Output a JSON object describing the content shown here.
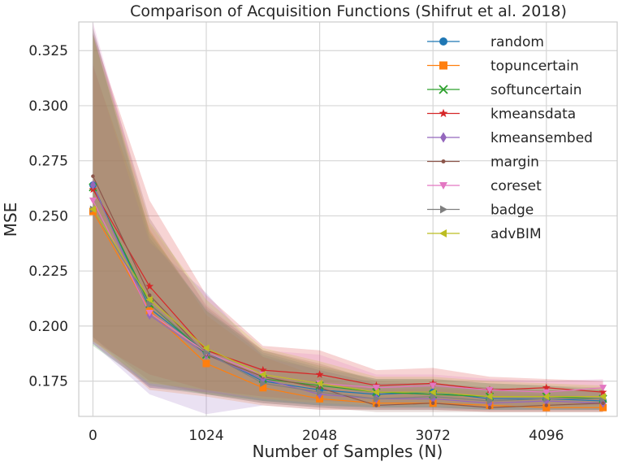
{
  "chart_data": {
    "type": "line",
    "title": "Comparison of Acquisition Functions (Shifrut et al. 2018)",
    "xlabel": "Number of Samples (N)",
    "ylabel": "MSE",
    "xlim": [
      -128,
      4736
    ],
    "ylim": [
      0.159,
      0.338
    ],
    "xticks": [
      0,
      1024,
      2048,
      3072,
      4096
    ],
    "xtick_labels": [
      "0",
      "1024",
      "2048",
      "3072",
      "4096"
    ],
    "yticks": [
      0.175,
      0.2,
      0.225,
      0.25,
      0.275,
      0.3,
      0.325
    ],
    "ytick_labels": [
      "0.175",
      "0.200",
      "0.225",
      "0.250",
      "0.275",
      "0.300",
      "0.325"
    ],
    "grid": true,
    "legend_position": "top-right",
    "x": [
      0,
      512,
      1024,
      1536,
      2048,
      2560,
      3072,
      3584,
      4096,
      4608
    ],
    "series": [
      {
        "name": "random",
        "color": "#1f77b4",
        "marker": "circle",
        "values": [
          0.264,
          0.208,
          0.188,
          0.175,
          0.171,
          0.169,
          0.17,
          0.167,
          0.167,
          0.166
        ],
        "lower": [
          0.195,
          0.172,
          0.17,
          0.166,
          0.164,
          0.163,
          0.163,
          0.162,
          0.162,
          0.162
        ],
        "upper": [
          0.333,
          0.24,
          0.208,
          0.188,
          0.181,
          0.176,
          0.176,
          0.174,
          0.173,
          0.171
        ]
      },
      {
        "name": "topuncertain",
        "color": "#ff7f0e",
        "marker": "square",
        "values": [
          0.252,
          0.207,
          0.183,
          0.172,
          0.167,
          0.165,
          0.165,
          0.164,
          0.163,
          0.163
        ],
        "lower": [
          0.194,
          0.171,
          0.168,
          0.164,
          0.162,
          0.162,
          0.162,
          0.161,
          0.161,
          0.161
        ],
        "upper": [
          0.318,
          0.244,
          0.205,
          0.186,
          0.177,
          0.171,
          0.172,
          0.17,
          0.169,
          0.168
        ]
      },
      {
        "name": "softuncertain",
        "color": "#2ca02c",
        "marker": "x",
        "values": [
          0.263,
          0.21,
          0.187,
          0.176,
          0.173,
          0.17,
          0.169,
          0.168,
          0.168,
          0.167
        ],
        "lower": [
          0.191,
          0.173,
          0.169,
          0.166,
          0.164,
          0.163,
          0.163,
          0.162,
          0.162,
          0.162
        ],
        "upper": [
          0.332,
          0.243,
          0.207,
          0.189,
          0.182,
          0.176,
          0.176,
          0.174,
          0.173,
          0.172
        ]
      },
      {
        "name": "kmeansdata",
        "color": "#d62728",
        "marker": "star",
        "values": [
          0.262,
          0.218,
          0.189,
          0.18,
          0.178,
          0.173,
          0.174,
          0.171,
          0.172,
          0.17
        ],
        "lower": [
          0.193,
          0.178,
          0.171,
          0.168,
          0.166,
          0.165,
          0.165,
          0.164,
          0.164,
          0.164
        ],
        "upper": [
          0.333,
          0.257,
          0.214,
          0.191,
          0.189,
          0.18,
          0.181,
          0.177,
          0.176,
          0.175
        ]
      },
      {
        "name": "kmeansembed",
        "color": "#9467bd",
        "marker": "diamond",
        "values": [
          0.264,
          0.205,
          0.187,
          0.176,
          0.169,
          0.167,
          0.167,
          0.165,
          0.166,
          0.165
        ],
        "lower": [
          0.192,
          0.169,
          0.16,
          0.164,
          0.162,
          0.162,
          0.162,
          0.161,
          0.161,
          0.161
        ],
        "upper": [
          0.319,
          0.238,
          0.215,
          0.186,
          0.18,
          0.174,
          0.174,
          0.172,
          0.171,
          0.17
        ]
      },
      {
        "name": "margin",
        "color": "#8c564b",
        "marker": "point",
        "values": [
          0.268,
          0.214,
          0.187,
          0.177,
          0.172,
          0.164,
          0.165,
          0.163,
          0.164,
          0.165
        ],
        "lower": [
          0.195,
          0.175,
          0.169,
          0.165,
          0.163,
          0.161,
          0.161,
          0.161,
          0.161,
          0.161
        ],
        "upper": [
          0.335,
          0.249,
          0.209,
          0.189,
          0.183,
          0.175,
          0.174,
          0.172,
          0.171,
          0.171
        ]
      },
      {
        "name": "coreset",
        "color": "#e377c2",
        "marker": "triangle-down",
        "values": [
          0.257,
          0.206,
          0.188,
          0.178,
          0.174,
          0.172,
          0.173,
          0.171,
          0.17,
          0.172
        ],
        "lower": [
          0.192,
          0.172,
          0.17,
          0.167,
          0.165,
          0.164,
          0.164,
          0.163,
          0.163,
          0.163
        ],
        "upper": [
          0.338,
          0.246,
          0.21,
          0.189,
          0.187,
          0.178,
          0.178,
          0.176,
          0.175,
          0.176
        ]
      },
      {
        "name": "badge",
        "color": "#7f7f7f",
        "marker": "triangle-right",
        "values": [
          0.253,
          0.21,
          0.188,
          0.174,
          0.17,
          0.167,
          0.168,
          0.166,
          0.167,
          0.167
        ],
        "lower": [
          0.192,
          0.172,
          0.169,
          0.165,
          0.163,
          0.162,
          0.162,
          0.162,
          0.162,
          0.162
        ],
        "upper": [
          0.336,
          0.242,
          0.207,
          0.187,
          0.18,
          0.174,
          0.174,
          0.172,
          0.171,
          0.171
        ]
      },
      {
        "name": "advBIM",
        "color": "#bcbd22",
        "marker": "triangle-left",
        "values": [
          0.253,
          0.212,
          0.19,
          0.178,
          0.174,
          0.17,
          0.17,
          0.168,
          0.168,
          0.168
        ],
        "lower": [
          0.193,
          0.174,
          0.171,
          0.167,
          0.165,
          0.164,
          0.164,
          0.163,
          0.163,
          0.163
        ],
        "upper": [
          0.332,
          0.247,
          0.212,
          0.19,
          0.184,
          0.177,
          0.177,
          0.175,
          0.174,
          0.173
        ]
      }
    ]
  }
}
